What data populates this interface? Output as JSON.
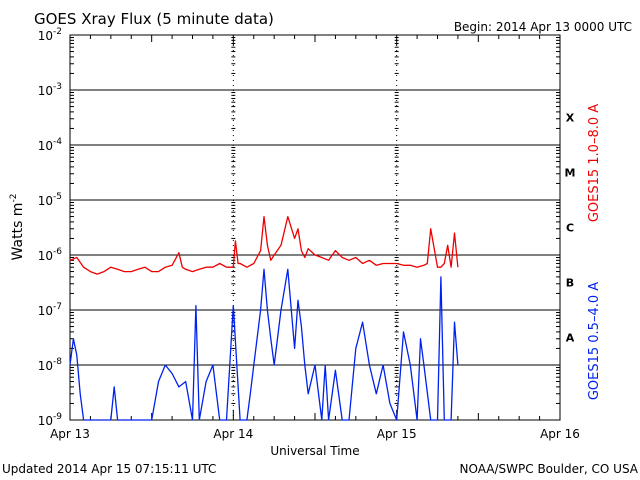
{
  "title": "GOES Xray Flux (5 minute data)",
  "begin": "Begin:  2014 Apr 13 0000 UTC",
  "updated": "Updated 2014 Apr 15 07:15:11 UTC",
  "credit": "NOAA/SWPC Boulder, CO USA",
  "colors": {
    "long": "#ee0000",
    "short": "#0022ee",
    "axis": "#000000"
  },
  "chart_data": {
    "type": "line",
    "title": "GOES Xray Flux (5 minute data)",
    "xlabel": "Universal Time",
    "ylabel": "Watts m",
    "ylabel_sup": "-2",
    "log_scale": true,
    "xlim": [
      0,
      72
    ],
    "ylim_exp": [
      -9,
      -2
    ],
    "x_tick_labels": [
      "Apr 13",
      "Apr 14",
      "Apr 15",
      "Apr 16"
    ],
    "y_tick_labels": [
      {
        "base": "10",
        "exp": "-9"
      },
      {
        "base": "10",
        "exp": "-8"
      },
      {
        "base": "10",
        "exp": "-7"
      },
      {
        "base": "10",
        "exp": "-6"
      },
      {
        "base": "10",
        "exp": "-5"
      },
      {
        "base": "10",
        "exp": "-4"
      },
      {
        "base": "10",
        "exp": "-3"
      },
      {
        "base": "10",
        "exp": "-2"
      }
    ],
    "flare_classes": [
      {
        "label": "X",
        "exp": -4
      },
      {
        "label": "M",
        "exp": -5
      },
      {
        "label": "C",
        "exp": -6
      },
      {
        "label": "B",
        "exp": -7
      },
      {
        "label": "A",
        "exp": -8
      }
    ],
    "grid": true,
    "series": [
      {
        "name": "GOES15 1.0–8.0 A",
        "color": "#ee0000",
        "x": [
          0,
          1,
          2,
          3,
          4,
          5,
          6,
          7,
          8,
          9,
          10,
          11,
          12,
          13,
          14,
          15,
          16,
          16.5,
          17,
          18,
          19,
          20,
          21,
          22,
          23,
          24,
          24.3,
          24.7,
          25,
          26,
          27,
          28,
          28.5,
          29,
          29.5,
          30,
          31,
          32,
          33,
          33.5,
          34,
          34.5,
          35,
          36,
          37,
          38,
          39,
          40,
          41,
          42,
          43,
          44,
          45,
          46,
          47,
          48,
          49,
          50,
          51,
          52,
          52.5,
          53,
          54,
          54.5,
          55,
          55.5,
          56,
          56.5,
          57
        ],
        "values": [
          8e-07,
          9e-07,
          6e-07,
          5e-07,
          4.5e-07,
          5e-07,
          6e-07,
          5.5e-07,
          5e-07,
          5e-07,
          5.5e-07,
          6e-07,
          5e-07,
          5e-07,
          6e-07,
          6.5e-07,
          1.1e-06,
          6e-07,
          5.5e-07,
          5e-07,
          5.5e-07,
          6e-07,
          6e-07,
          7e-07,
          6e-07,
          6e-07,
          1.8e-06,
          7e-07,
          7e-07,
          6e-07,
          7e-07,
          1.2e-06,
          5e-06,
          1.5e-06,
          8e-07,
          1e-06,
          1.5e-06,
          5e-06,
          2e-06,
          3e-06,
          1.2e-06,
          9e-07,
          1.3e-06,
          1e-06,
          9e-07,
          8e-07,
          1.2e-06,
          9e-07,
          8e-07,
          9e-07,
          7e-07,
          8e-07,
          6.5e-07,
          7e-07,
          7e-07,
          7e-07,
          6.5e-07,
          6.5e-07,
          6e-07,
          6.5e-07,
          7e-07,
          3e-06,
          6e-07,
          6e-07,
          7e-07,
          1.5e-06,
          6e-07,
          2.5e-06,
          6e-07
        ]
      },
      {
        "name": "GOES15 0.5–4.0 A",
        "color": "#0022ee",
        "x": [
          0,
          0.5,
          1,
          1.5,
          2,
          3,
          4,
          5,
          6,
          6.5,
          7,
          8,
          9,
          10,
          11,
          12,
          13,
          14,
          15,
          16,
          17,
          18,
          18.5,
          19,
          20,
          21,
          22,
          23,
          24,
          25,
          26,
          26.5,
          27,
          28,
          28.5,
          29,
          29.5,
          30,
          31,
          32,
          33,
          33.5,
          34,
          34.5,
          35,
          36,
          37,
          37.5,
          38,
          39,
          40,
          41,
          42,
          43,
          44,
          45,
          46,
          47,
          48,
          49,
          50,
          51,
          51.5,
          52,
          53,
          54,
          54.5,
          55,
          55.5,
          56,
          56.5,
          57
        ],
        "values": [
          1e-08,
          3e-08,
          1.5e-08,
          3e-09,
          1e-09,
          1e-09,
          1e-09,
          1e-09,
          1e-09,
          4e-09,
          1e-09,
          1e-09,
          1e-09,
          1e-09,
          1e-09,
          1e-09,
          5e-09,
          1e-08,
          7e-09,
          4e-09,
          5e-09,
          1e-09,
          1.2e-07,
          1e-09,
          5e-09,
          1e-08,
          1e-09,
          1e-09,
          1.2e-07,
          1e-09,
          1e-09,
          3e-09,
          1e-08,
          1e-07,
          5.5e-07,
          1e-07,
          3e-08,
          1e-08,
          1e-07,
          5.5e-07,
          2e-08,
          1.5e-07,
          5e-08,
          1e-08,
          3e-09,
          1e-08,
          1e-09,
          1e-08,
          1e-09,
          8e-09,
          1e-09,
          1e-09,
          2e-08,
          6e-08,
          1e-08,
          3e-09,
          1e-08,
          2e-09,
          1e-09,
          4e-08,
          1e-08,
          1e-09,
          3e-08,
          1e-08,
          1e-09,
          1e-09,
          4e-07,
          1e-09,
          1e-09,
          1e-09,
          6e-08,
          1e-08
        ]
      }
    ]
  }
}
